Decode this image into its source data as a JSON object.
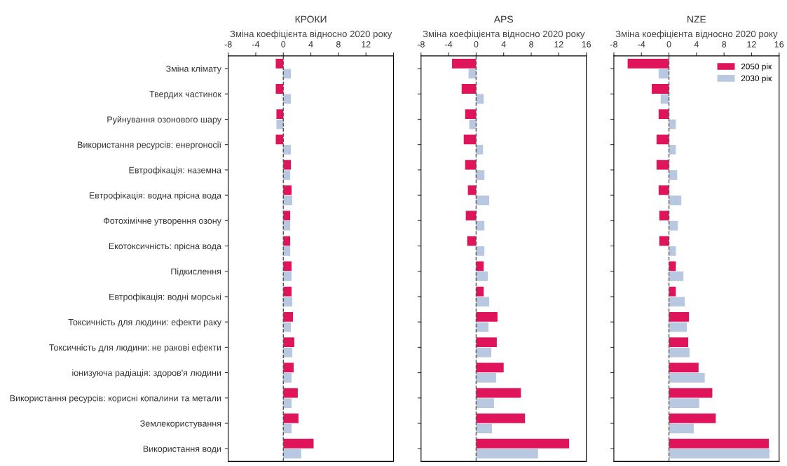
{
  "chart_data": [
    {
      "type": "bar",
      "orientation": "horizontal",
      "title": "КРОКИ",
      "xlabel": "Зміна коефіцієнта відносно 2020 року",
      "categories": [
        "Зміна клімату",
        "Твердих частинок",
        "Руйнування озонового шару",
        "Використання ресурсів: енергоносії",
        "Евтрофікація: наземна",
        "Евтрофікація: водна прісна вода",
        "Фотохімічне утворення озону",
        "Екотоксичність: прісна вода",
        "Підкислення",
        "Евтрофікація: водні морські",
        "Токсичність для людини: ефекти раку",
        "Токсичність для людини: не ракові ефекти",
        "іонизуюча радіація: здоров'я людини",
        "Використання ресурсів: корисні копалини та метали",
        "Землекористування",
        "Використання води"
      ],
      "series": [
        {
          "color": "#e0145a",
          "values": [
            -1.1,
            -1.1,
            -1.0,
            -1.1,
            1.1,
            1.2,
            1.0,
            1.0,
            1.2,
            1.2,
            1.4,
            1.6,
            1.5,
            2.1,
            2.2,
            4.4
          ]
        },
        {
          "color": "#b8c8e0",
          "values": [
            1.1,
            1.1,
            -1.0,
            1.1,
            1.0,
            1.3,
            1.0,
            1.0,
            1.2,
            1.3,
            1.1,
            1.3,
            1.2,
            1.2,
            1.2,
            2.6
          ]
        }
      ],
      "xlim": [
        -8,
        16
      ],
      "xticks": [
        -8,
        -4,
        0,
        4,
        8,
        12,
        {
          "value": 16,
          "label": null
        }
      ],
      "ref_lines": [
        {
          "axis": "x",
          "value": 0,
          "color": "#555555",
          "line_style": "dashed"
        }
      ]
    },
    {
      "type": "bar",
      "orientation": "horizontal",
      "title": "APS",
      "xlabel": "Зміна коефіцієнта відносно 2020 року",
      "tick_labels": "x",
      "categories": [
        null,
        null,
        null,
        null,
        null,
        null,
        null,
        null,
        null,
        null,
        null,
        null,
        null,
        null,
        null,
        null
      ],
      "series": [
        {
          "color": "#e0145a",
          "values": [
            -3.5,
            -2.1,
            -1.6,
            -1.8,
            -1.6,
            -1.2,
            -1.5,
            -1.3,
            1.1,
            1.1,
            3.1,
            3.0,
            4.0,
            6.5,
            7.1,
            13.5
          ]
        },
        {
          "color": "#b8c8e0",
          "values": [
            -1.1,
            1.1,
            -1.0,
            1.0,
            1.2,
            1.9,
            1.2,
            1.2,
            1.7,
            1.9,
            1.8,
            2.2,
            2.9,
            2.6,
            2.3,
            9.0
          ]
        }
      ],
      "xlim": [
        -8,
        16
      ],
      "xticks": [
        -8,
        -4,
        0,
        4,
        8,
        12,
        16
      ],
      "ref_lines": [
        {
          "axis": "x",
          "value": 0,
          "color": "#555555",
          "line_style": "dashed"
        }
      ]
    },
    {
      "type": "bar",
      "orientation": "horizontal",
      "title": "NZE",
      "xlabel": "Зміна коефіцієнта відносно 2020 року",
      "tick_labels": "x",
      "legend": "top right",
      "categories": [
        null,
        null,
        null,
        null,
        null,
        null,
        null,
        null,
        null,
        null,
        null,
        null,
        null,
        null,
        null,
        null
      ],
      "series": [
        {
          "name": "2050 рік",
          "color": "#e0145a",
          "values": [
            -6.0,
            -2.5,
            -1.5,
            -1.8,
            -1.8,
            -1.5,
            -1.4,
            -1.4,
            1.0,
            1.0,
            2.9,
            2.8,
            4.3,
            6.3,
            6.8,
            14.5
          ]
        },
        {
          "name": "2030 рік",
          "color": "#b8c8e0",
          "values": [
            -1.5,
            -1.2,
            1.0,
            1.0,
            1.2,
            1.8,
            1.3,
            1.0,
            2.1,
            2.3,
            2.6,
            3.0,
            5.2,
            4.4,
            3.6,
            14.6
          ]
        }
      ],
      "xlim": [
        -8,
        16
      ],
      "xticks": [
        -8,
        -4,
        0,
        4,
        8,
        12,
        16
      ],
      "ref_lines": [
        {
          "axis": "x",
          "value": 0,
          "color": "#555555",
          "line_style": "dashed"
        }
      ]
    }
  ]
}
